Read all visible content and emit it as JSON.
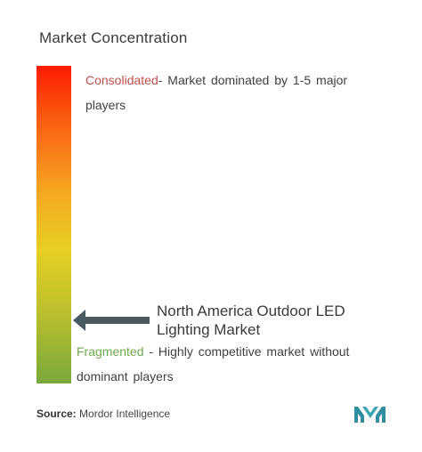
{
  "title": "Market Concentration",
  "scale": {
    "top_color": "#ff1a00",
    "middle_color": "#e7cf23",
    "bottom_color": "#7aa83c"
  },
  "consolidated": {
    "key": "Consolidated",
    "text": "- Market dominated  by 1-5 major players",
    "key_color": "#c0504d"
  },
  "fragmented": {
    "key": "Fragmented",
    "text": " - Highly competitive  market without dominant  players",
    "key_color": "#6fa84a"
  },
  "marker": {
    "icon": "left-arrow-icon",
    "label": "North America Outdoor LED Lighting Market",
    "color": "#4a5a60"
  },
  "source": {
    "key": "Source:",
    "text": " Mordor Intelligence"
  },
  "logo": {
    "icon": "mordor-intelligence-logo",
    "color": "#3aa5b5"
  }
}
